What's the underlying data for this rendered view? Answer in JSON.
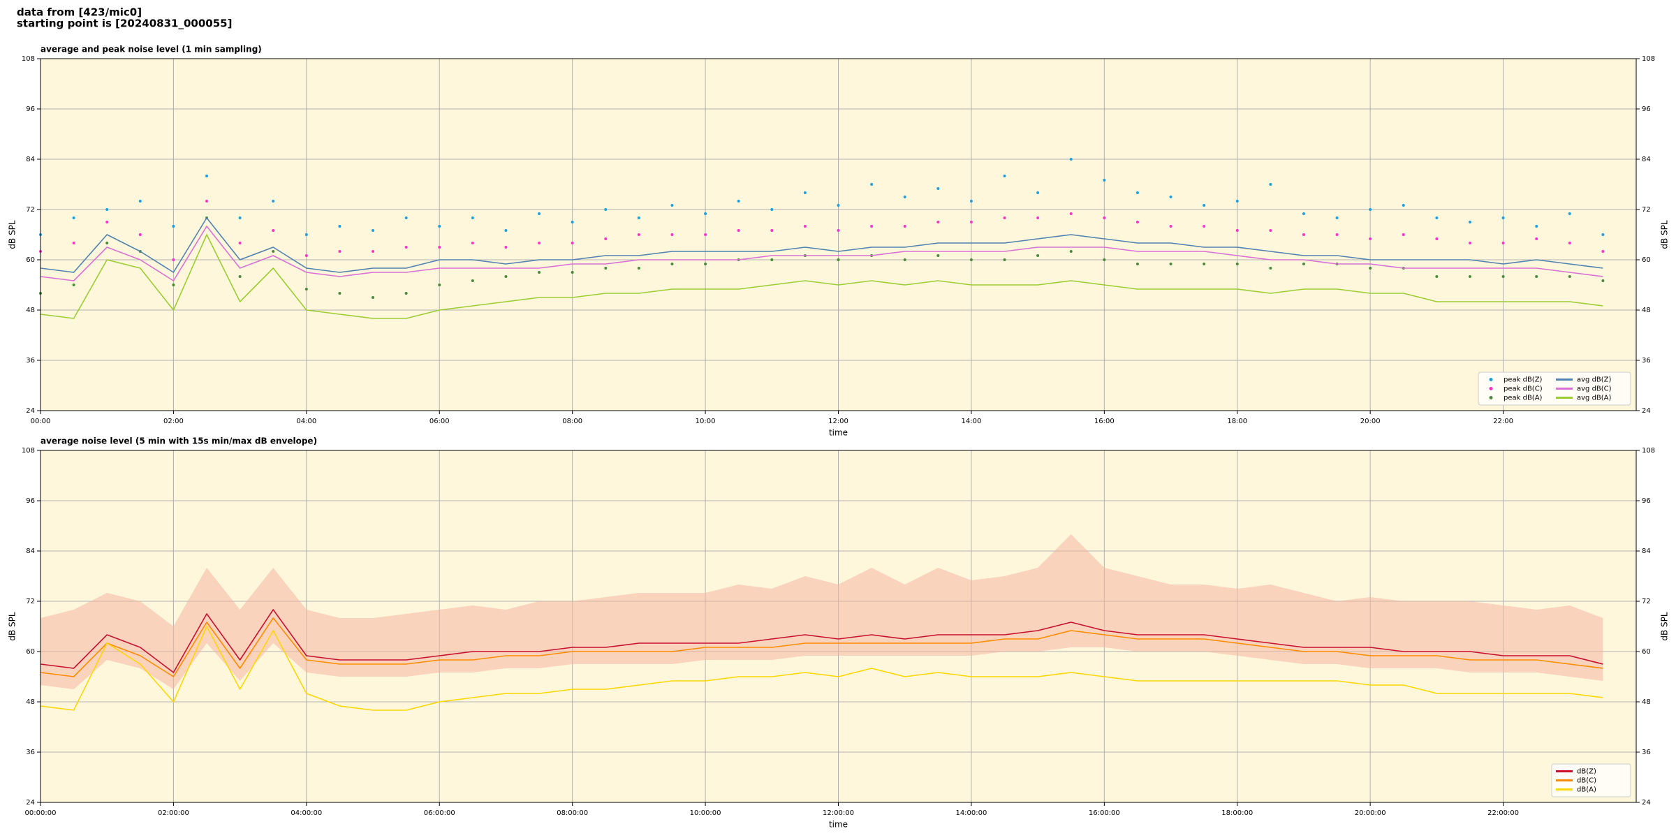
{
  "header": {
    "lines": [
      "data from [423/mic0]",
      "starting point is [20240831_000055]"
    ]
  },
  "chart_data": [
    {
      "type": "line",
      "title": "average and peak noise level (1 min sampling)",
      "xlabel": "time",
      "ylabel": "dB SPL",
      "x": [
        0,
        0.5,
        1,
        1.5,
        2,
        2.5,
        3,
        3.5,
        4,
        4.5,
        5,
        5.5,
        6,
        6.5,
        7,
        7.5,
        8,
        8.5,
        9,
        9.5,
        10,
        10.5,
        11,
        11.5,
        12,
        12.5,
        13,
        13.5,
        14,
        14.5,
        15,
        15.5,
        16,
        16.5,
        17,
        17.5,
        18,
        18.5,
        19,
        19.5,
        20,
        20.5,
        21,
        21.5,
        22,
        22.5,
        23,
        23.5
      ],
      "xlim": [
        0,
        24
      ],
      "xticks": [
        {
          "value": 0,
          "label": "00:00"
        },
        {
          "value": 2,
          "label": "02:00"
        },
        {
          "value": 4,
          "label": "04:00"
        },
        {
          "value": 6,
          "label": "06:00"
        },
        {
          "value": 8,
          "label": "08:00"
        },
        {
          "value": 10,
          "label": "10:00"
        },
        {
          "value": 12,
          "label": "12:00"
        },
        {
          "value": 14,
          "label": "14:00"
        },
        {
          "value": 16,
          "label": "16:00"
        },
        {
          "value": 18,
          "label": "18:00"
        },
        {
          "value": 20,
          "label": "20:00"
        },
        {
          "value": 22,
          "label": "22:00"
        }
      ],
      "ylim": [
        24,
        108
      ],
      "yticks": [
        24,
        36,
        48,
        60,
        72,
        84,
        96,
        108
      ],
      "grid": true,
      "right_axis": true,
      "background": "#fff7dc",
      "legend": "lower right",
      "legend_columns": 2,
      "series": [
        {
          "name": "peak dB(Z)",
          "type": "scatter",
          "color": "#1f9fe0",
          "values": [
            66,
            70,
            72,
            74,
            68,
            80,
            70,
            74,
            66,
            68,
            67,
            70,
            68,
            70,
            67,
            71,
            69,
            72,
            70,
            73,
            71,
            74,
            72,
            76,
            73,
            78,
            75,
            77,
            74,
            80,
            76,
            84,
            79,
            76,
            75,
            73,
            74,
            78,
            71,
            70,
            72,
            73,
            70,
            69,
            70,
            68,
            71,
            66
          ]
        },
        {
          "name": "peak dB(C)",
          "type": "scatter",
          "color": "#ff33cc",
          "values": [
            62,
            64,
            69,
            66,
            60,
            74,
            64,
            67,
            61,
            62,
            62,
            63,
            63,
            64,
            63,
            64,
            64,
            65,
            66,
            66,
            66,
            67,
            67,
            68,
            67,
            68,
            68,
            69,
            69,
            70,
            70,
            71,
            70,
            69,
            68,
            68,
            67,
            67,
            66,
            66,
            65,
            66,
            65,
            64,
            64,
            65,
            64,
            62
          ]
        },
        {
          "name": "peak dB(A)",
          "type": "scatter",
          "color": "#4a8a3a",
          "values": [
            52,
            54,
            64,
            62,
            54,
            70,
            56,
            62,
            53,
            52,
            51,
            52,
            54,
            55,
            56,
            57,
            57,
            58,
            58,
            59,
            59,
            60,
            60,
            61,
            60,
            61,
            60,
            61,
            60,
            60,
            61,
            62,
            60,
            59,
            59,
            59,
            59,
            58,
            59,
            59,
            58,
            58,
            56,
            56,
            56,
            56,
            56,
            55
          ]
        },
        {
          "name": "avg dB(Z)",
          "type": "line",
          "color": "#4f82b0",
          "values": [
            58,
            57,
            66,
            62,
            57,
            70,
            60,
            63,
            58,
            57,
            58,
            58,
            60,
            60,
            59,
            60,
            60,
            61,
            61,
            62,
            62,
            62,
            62,
            63,
            62,
            63,
            63,
            64,
            64,
            64,
            65,
            66,
            65,
            64,
            64,
            63,
            63,
            62,
            61,
            61,
            60,
            60,
            60,
            60,
            59,
            60,
            59,
            58
          ]
        },
        {
          "name": "avg dB(C)",
          "type": "line",
          "color": "#da70d6",
          "values": [
            56,
            55,
            63,
            60,
            55,
            68,
            58,
            61,
            57,
            56,
            57,
            57,
            58,
            58,
            58,
            58,
            59,
            59,
            60,
            60,
            60,
            60,
            61,
            61,
            61,
            61,
            62,
            62,
            62,
            62,
            63,
            63,
            63,
            62,
            62,
            62,
            61,
            60,
            60,
            59,
            59,
            58,
            58,
            58,
            58,
            58,
            57,
            56
          ]
        },
        {
          "name": "avg dB(A)",
          "type": "line",
          "color": "#9acd32",
          "values": [
            47,
            46,
            60,
            58,
            48,
            66,
            50,
            58,
            48,
            47,
            46,
            46,
            48,
            49,
            50,
            51,
            51,
            52,
            52,
            53,
            53,
            53,
            54,
            55,
            54,
            55,
            54,
            55,
            54,
            54,
            54,
            55,
            54,
            53,
            53,
            53,
            53,
            52,
            53,
            53,
            52,
            52,
            50,
            50,
            50,
            50,
            50,
            49
          ]
        }
      ]
    },
    {
      "type": "line",
      "title": "average noise level (5 min with 15s min/max dB envelope)",
      "xlabel": "time",
      "ylabel": "dB SPL",
      "x": [
        0,
        0.5,
        1,
        1.5,
        2,
        2.5,
        3,
        3.5,
        4,
        4.5,
        5,
        5.5,
        6,
        6.5,
        7,
        7.5,
        8,
        8.5,
        9,
        9.5,
        10,
        10.5,
        11,
        11.5,
        12,
        12.5,
        13,
        13.5,
        14,
        14.5,
        15,
        15.5,
        16,
        16.5,
        17,
        17.5,
        18,
        18.5,
        19,
        19.5,
        20,
        20.5,
        21,
        21.5,
        22,
        22.5,
        23,
        23.5
      ],
      "xlim": [
        0,
        24
      ],
      "xticks": [
        {
          "value": 0,
          "label": "00:00:00"
        },
        {
          "value": 2,
          "label": "02:00:00"
        },
        {
          "value": 4,
          "label": "04:00:00"
        },
        {
          "value": 6,
          "label": "06:00:00"
        },
        {
          "value": 8,
          "label": "08:00:00"
        },
        {
          "value": 10,
          "label": "10:00:00"
        },
        {
          "value": 12,
          "label": "12:00:00"
        },
        {
          "value": 14,
          "label": "14:00:00"
        },
        {
          "value": 16,
          "label": "16:00:00"
        },
        {
          "value": 18,
          "label": "18:00:00"
        },
        {
          "value": 20,
          "label": "20:00:00"
        },
        {
          "value": 22,
          "label": "22:00:00"
        }
      ],
      "ylim": [
        24,
        108
      ],
      "yticks": [
        24,
        36,
        48,
        60,
        72,
        84,
        96,
        108
      ],
      "grid": true,
      "right_axis": true,
      "background": "#fff7dc",
      "legend": "lower right",
      "legend_columns": 1,
      "envelope": {
        "color": "#f4b6a0",
        "max": [
          68,
          70,
          74,
          72,
          66,
          80,
          70,
          80,
          70,
          68,
          68,
          69,
          70,
          71,
          70,
          72,
          72,
          73,
          74,
          74,
          74,
          76,
          75,
          78,
          76,
          80,
          76,
          80,
          77,
          78,
          80,
          88,
          80,
          78,
          76,
          76,
          75,
          76,
          74,
          72,
          73,
          72,
          72,
          72,
          71,
          70,
          71,
          68
        ],
        "min": [
          52,
          51,
          58,
          56,
          51,
          62,
          53,
          62,
          55,
          54,
          54,
          54,
          55,
          55,
          56,
          56,
          57,
          57,
          57,
          57,
          58,
          58,
          58,
          59,
          59,
          59,
          59,
          59,
          59,
          60,
          60,
          61,
          61,
          60,
          60,
          60,
          59,
          58,
          57,
          57,
          56,
          56,
          56,
          55,
          55,
          55,
          54,
          53
        ]
      },
      "series": [
        {
          "name": "dB(Z)",
          "type": "line",
          "color": "#c8102e",
          "values": [
            57,
            56,
            64,
            61,
            55,
            69,
            58,
            70,
            59,
            58,
            58,
            58,
            59,
            60,
            60,
            60,
            61,
            61,
            62,
            62,
            62,
            62,
            63,
            64,
            63,
            64,
            63,
            64,
            64,
            64,
            65,
            67,
            65,
            64,
            64,
            64,
            63,
            62,
            61,
            61,
            61,
            60,
            60,
            60,
            59,
            59,
            59,
            57
          ]
        },
        {
          "name": "dB(C)",
          "type": "line",
          "color": "#ff8c00",
          "values": [
            55,
            54,
            62,
            59,
            54,
            67,
            56,
            68,
            58,
            57,
            57,
            57,
            58,
            58,
            59,
            59,
            60,
            60,
            60,
            60,
            61,
            61,
            61,
            62,
            62,
            62,
            62,
            62,
            62,
            63,
            63,
            65,
            64,
            63,
            63,
            63,
            62,
            61,
            60,
            60,
            59,
            59,
            59,
            58,
            58,
            58,
            57,
            56
          ]
        },
        {
          "name": "dB(A)",
          "type": "line",
          "color": "#ffd700",
          "values": [
            47,
            46,
            62,
            57,
            48,
            66,
            51,
            65,
            50,
            47,
            46,
            46,
            48,
            49,
            50,
            50,
            51,
            51,
            52,
            53,
            53,
            54,
            54,
            55,
            54,
            56,
            54,
            55,
            54,
            54,
            54,
            55,
            54,
            53,
            53,
            53,
            53,
            53,
            53,
            53,
            52,
            52,
            50,
            50,
            50,
            50,
            50,
            49
          ]
        }
      ]
    }
  ]
}
